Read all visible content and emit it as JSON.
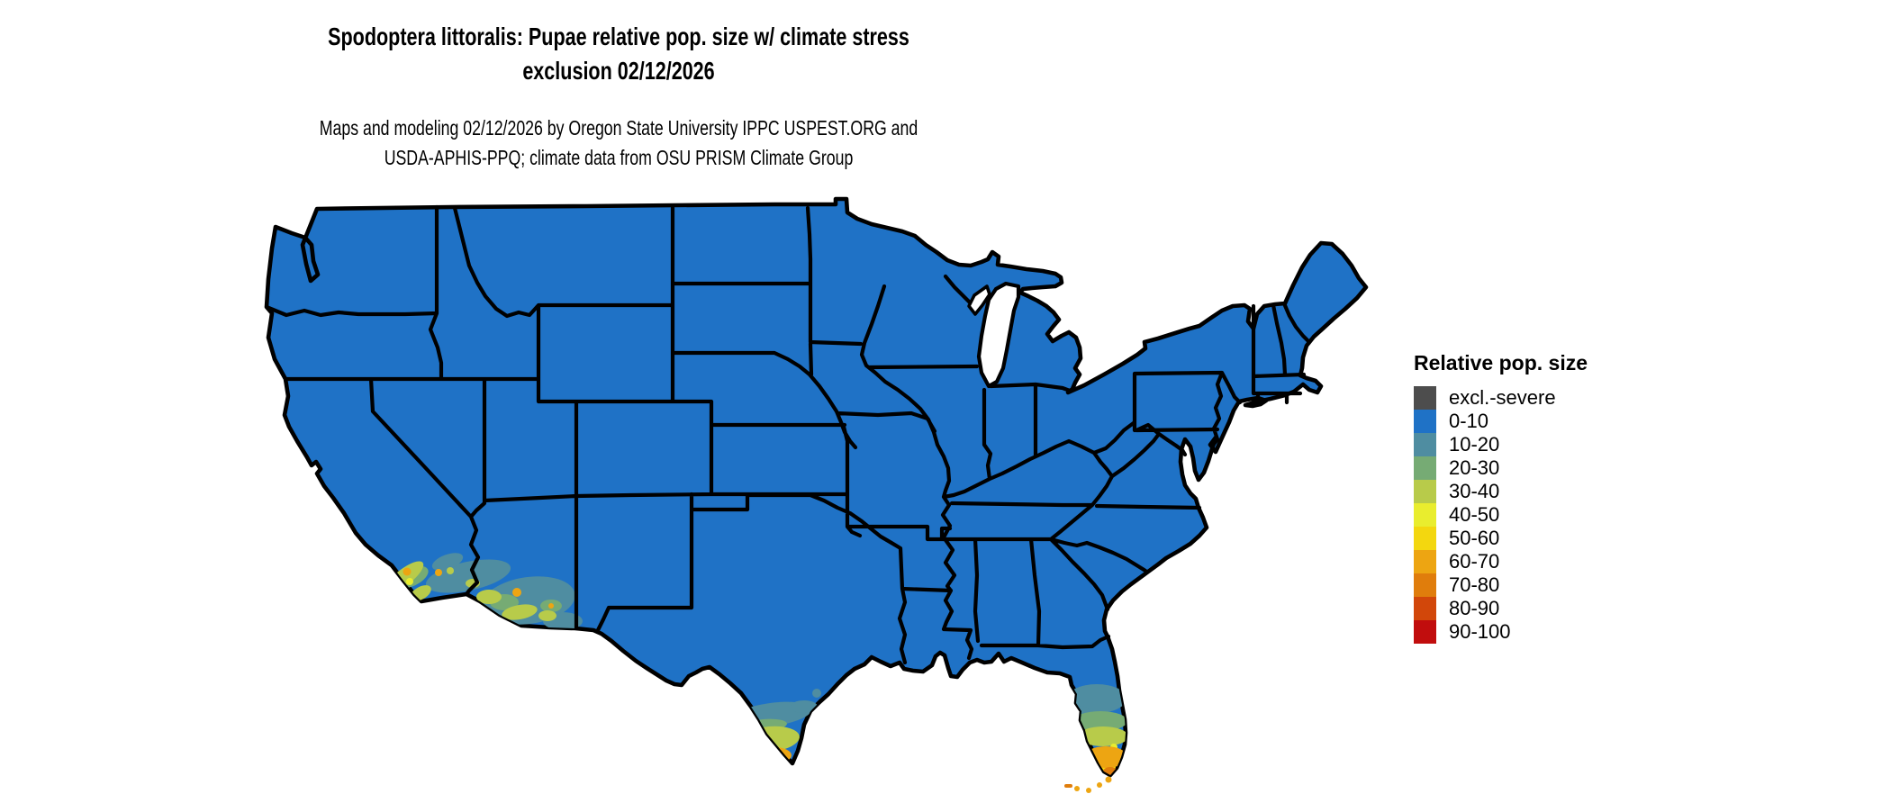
{
  "title": {
    "line1": "Spodoptera littoralis: Pupae relative pop. size w/ climate stress",
    "line2": "exclusion 02/12/2026"
  },
  "subtitle": {
    "line1": "Maps and modeling 02/12/2026 by Oregon State University IPPC USPEST.ORG and",
    "line2": "USDA-APHIS-PPQ; climate data from OSU PRISM Climate Group"
  },
  "legend": {
    "title": "Relative pop. size",
    "items": [
      {
        "label": "excl.-severe",
        "color": "#4d4d4d"
      },
      {
        "label": "0-10",
        "color": "#1f72c6"
      },
      {
        "label": "10-20",
        "color": "#4f8da1"
      },
      {
        "label": "20-30",
        "color": "#76ab74"
      },
      {
        "label": "30-40",
        "color": "#b8cb4a"
      },
      {
        "label": "40-50",
        "color": "#e9ed2e"
      },
      {
        "label": "50-60",
        "color": "#f3d70f"
      },
      {
        "label": "60-70",
        "color": "#eda512"
      },
      {
        "label": "70-80",
        "color": "#e07d0c"
      },
      {
        "label": "80-90",
        "color": "#d2470a"
      },
      {
        "label": "90-100",
        "color": "#c10d0d"
      }
    ]
  },
  "map": {
    "land_color": "#1f72c6",
    "border_color": "#000000",
    "water_color": "#ffffff",
    "depicted_hotspots": [
      "southern California coast",
      "southwestern Arizona",
      "southern Texas Rio Grande Valley",
      "central and southern Florida incl. Keys"
    ]
  }
}
